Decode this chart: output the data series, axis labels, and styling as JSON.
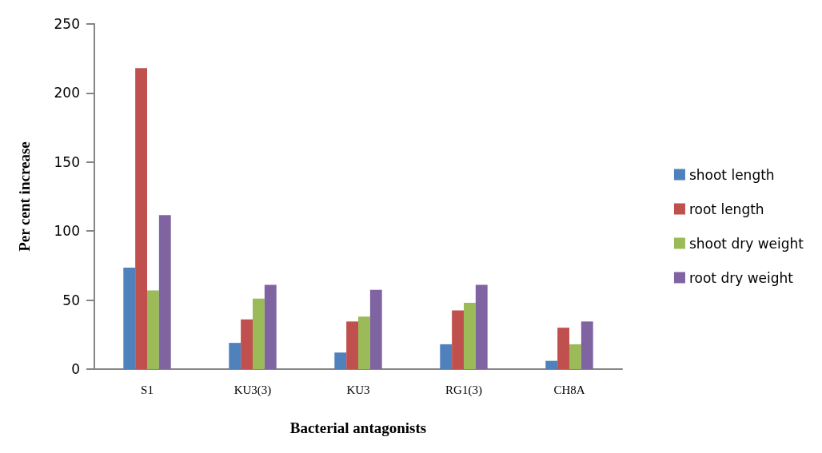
{
  "chart_data": {
    "type": "bar",
    "xlabel": "Bacterial antagonists",
    "ylabel": "Per cent increase",
    "categories": [
      "S1",
      "KU3(3)",
      "KU3",
      "RG1(3)",
      "CH8A"
    ],
    "series": [
      {
        "name": "shoot length",
        "color": "#4f81bd",
        "values": [
          73.5,
          19,
          12,
          18,
          6
        ]
      },
      {
        "name": "root length",
        "color": "#c0504d",
        "values": [
          218,
          36,
          34.5,
          42.5,
          30
        ]
      },
      {
        "name": "shoot dry weight",
        "color": "#9bbb59",
        "values": [
          57,
          51,
          38,
          48,
          18
        ]
      },
      {
        "name": "root dry weight",
        "color": "#8064a2",
        "values": [
          111.5,
          61,
          57.5,
          61,
          34.5
        ]
      }
    ],
    "ylim": [
      0,
      250
    ],
    "yticks": [
      0,
      50,
      100,
      150,
      200,
      250
    ],
    "grid": false,
    "legend": "right"
  }
}
